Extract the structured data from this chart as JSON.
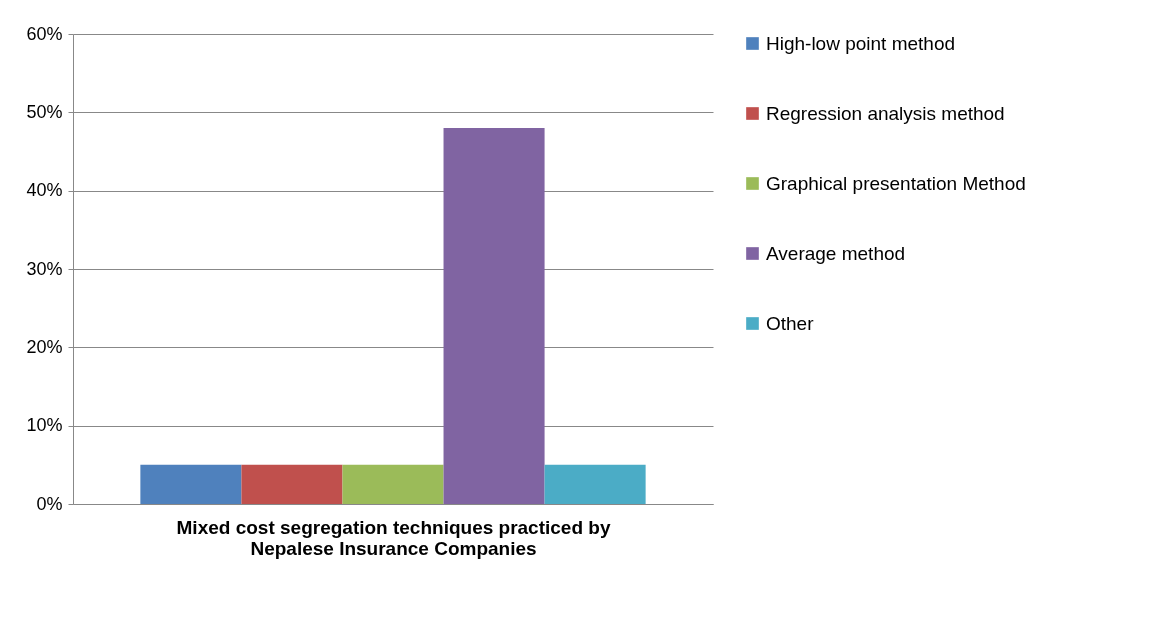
{
  "chart_data": {
    "type": "bar",
    "xlabel": "Mixed cost segregation techniques practiced by Nepalese Insurance Companies",
    "categories": [
      null
    ],
    "series": [
      {
        "name": "High-low point method",
        "color": "#4f81bd",
        "values": [
          5
        ]
      },
      {
        "name": "Regression analysis method",
        "color": "#c0504d",
        "values": [
          5
        ]
      },
      {
        "name": "Graphical presentation Method",
        "color": "#9bbb59",
        "values": [
          5
        ]
      },
      {
        "name": "Average method",
        "color": "#8064a2",
        "values": [
          48
        ]
      },
      {
        "name": "Other",
        "color": "#4bacc6",
        "values": [
          5
        ]
      }
    ],
    "ylim": [
      0,
      60
    ],
    "yticks": [
      {
        "value": 0,
        "label": "0%"
      },
      {
        "value": 10,
        "label": "10%"
      },
      {
        "value": 20,
        "label": "20%"
      },
      {
        "value": 30,
        "label": "30%"
      },
      {
        "value": 40,
        "label": "40%"
      },
      {
        "value": 50,
        "label": "50%"
      },
      {
        "value": 60,
        "label": "60%"
      }
    ],
    "grid": "y",
    "legend": "right"
  }
}
